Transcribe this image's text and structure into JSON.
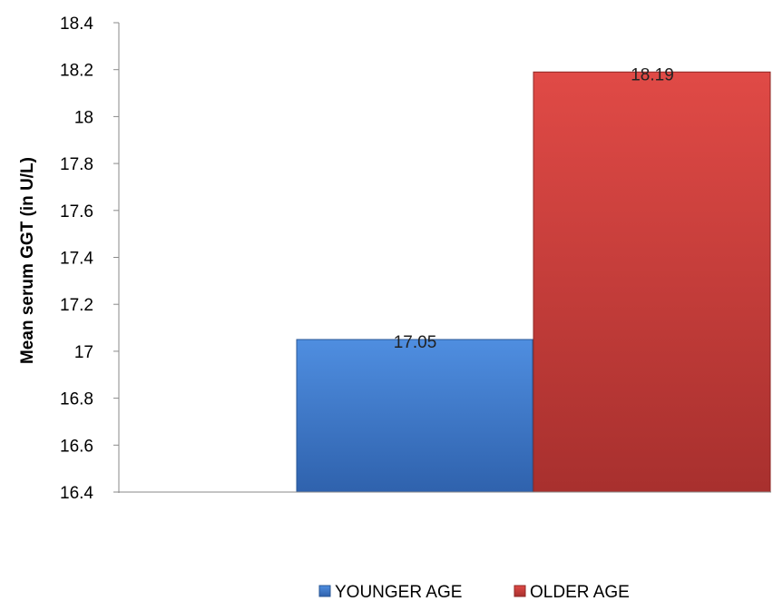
{
  "chart_data": {
    "type": "bar",
    "title": "",
    "xlabel": "",
    "ylabel": "Mean serum GGT (in U/L)",
    "ylim": [
      16.4,
      18.4
    ],
    "yticks": [
      16.4,
      16.6,
      16.8,
      17,
      17.2,
      17.4,
      17.6,
      17.8,
      18,
      18.2,
      18.4
    ],
    "grid": false,
    "legend_position": "bottom",
    "series": [
      {
        "name": "YOUNGER AGE",
        "values": [
          17.05
        ],
        "data_label": "17.05",
        "color": "#3a73c4"
      },
      {
        "name": "OLDER AGE",
        "values": [
          18.19
        ],
        "data_label": "18.19",
        "color": "#cc3b38"
      }
    ]
  }
}
